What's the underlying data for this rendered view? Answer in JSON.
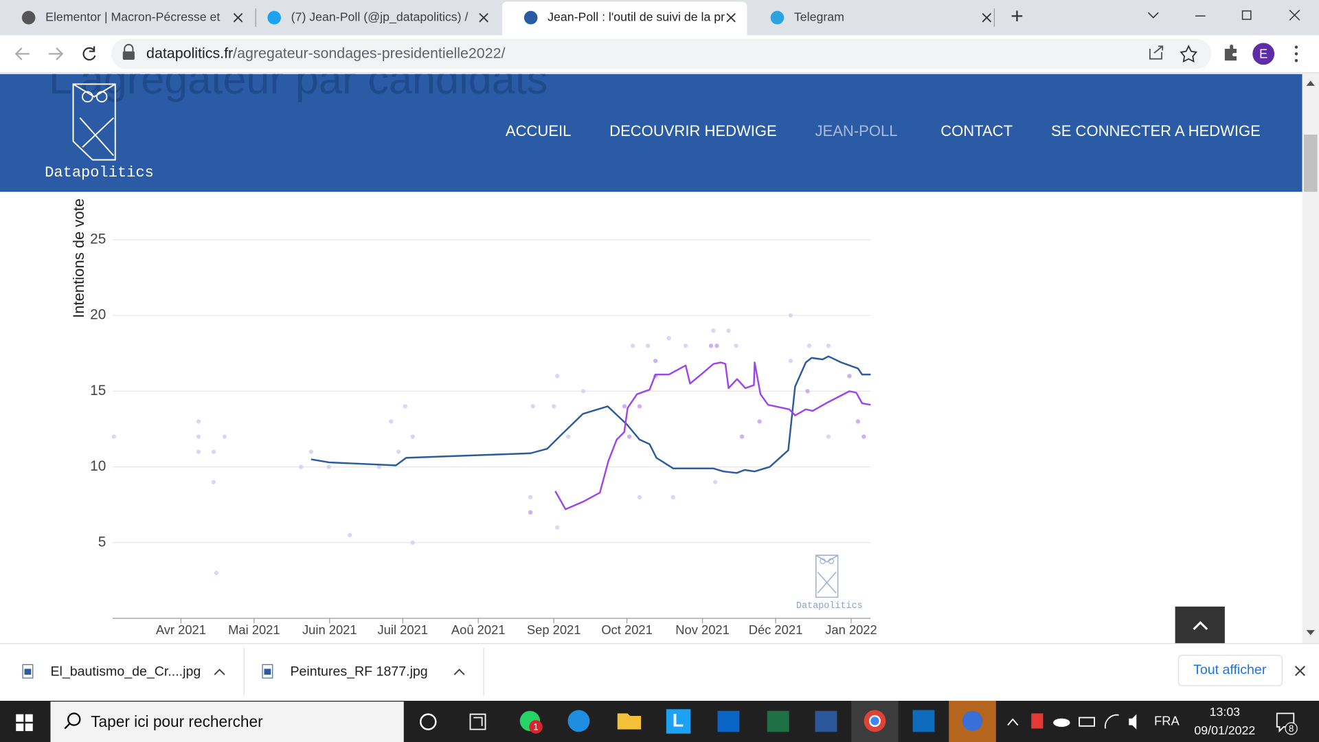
{
  "browser": {
    "tabs": [
      {
        "title": "Elementor | Macron-Pécresse et"
      },
      {
        "title": "(7) Jean-Poll (@jp_datapolitics) /"
      },
      {
        "title": "Jean-Poll : l'outil de suivi de la pr"
      },
      {
        "title": "Telegram"
      }
    ],
    "url_host": "datapolitics.fr",
    "url_path": "/agregateur-sondages-presidentielle2022/",
    "profile": "E"
  },
  "site": {
    "logo": "Datapolitics",
    "nav": [
      "ACCUEIL",
      "DECOUVRIR HEDWIGE",
      "JEAN-POLL",
      "CONTACT",
      "SE CONNECTER A HEDWIGE"
    ],
    "active_nav": 2,
    "heading": "L'agrégateur par candidats"
  },
  "chart": {
    "type": "line",
    "ylabel": "Intentions de vote",
    "watermark": "Datapolitics",
    "xlim": [
      -28,
      283
    ],
    "ylim": [
      0,
      27
    ],
    "xticks": [
      {
        "value": 0,
        "label": "Avr 2021"
      },
      {
        "value": 30,
        "label": "Mai 2021"
      },
      {
        "value": 61,
        "label": "Juin 2021"
      },
      {
        "value": 91,
        "label": "Juil 2021"
      },
      {
        "value": 122,
        "label": "Aoû 2021"
      },
      {
        "value": 153,
        "label": "Sep 2021"
      },
      {
        "value": 183,
        "label": "Oct 2021"
      },
      {
        "value": 214,
        "label": "Nov 2021"
      },
      {
        "value": 244,
        "label": "Déc 2021"
      },
      {
        "value": 275,
        "label": "Jan 2022"
      }
    ],
    "yticks": [
      5,
      10,
      15,
      20,
      25
    ],
    "grid": true,
    "series": [
      {
        "color": "#2b5b9c",
        "x": [
          53.4,
          60.7,
          88.2,
          92.4,
          143.4,
          150.3,
          155.3,
          164.9,
          175.1,
          183,
          188.2,
          192.3,
          195.1,
          202,
          208.9,
          218.5,
          222.6,
          228.1,
          231.3,
          235.4,
          241.6,
          249.2,
          252,
          256.4,
          258.8,
          263.3,
          265.7,
          270.9,
          277.8,
          279.5,
          283
        ],
        "values": [
          10.5,
          10.3,
          10.1,
          10.6,
          10.9,
          11.2,
          12.0,
          13.5,
          14.0,
          12.8,
          11.8,
          11.5,
          10.6,
          9.9,
          9.9,
          9.9,
          9.7,
          9.6,
          9.8,
          9.7,
          10.0,
          11.1,
          15.3,
          16.9,
          17.2,
          17.1,
          17.3,
          16.9,
          16.5,
          16.1,
          16.1
        ]
      },
      {
        "color": "#9b45ec",
        "x": [
          153.6,
          157.8,
          165,
          171.9,
          175.4,
          178.8,
          181.9,
          183.3,
          187.1,
          192.3,
          194.7,
          200.2,
          207.1,
          208.9,
          213.4,
          218.5,
          221.6,
          223.4,
          224.7,
          228.2,
          231.6,
          235.1,
          235.4,
          237.8,
          240.9,
          249.6,
          252,
          256.4,
          259.2,
          264.7,
          274.3,
          277.1,
          279.5,
          283
        ],
        "values": [
          8.4,
          7.2,
          7.7,
          8.3,
          10.4,
          11.8,
          12.3,
          13.9,
          14.8,
          15.1,
          16.1,
          16.1,
          16.7,
          15.5,
          16.1,
          16.8,
          16.9,
          16.8,
          15.2,
          15.8,
          15.2,
          15.4,
          16.9,
          14.8,
          14.1,
          13.8,
          13.4,
          13.8,
          13.7,
          14.2,
          15.0,
          14.9,
          14.2,
          14.1
        ]
      }
    ],
    "scatter": [
      {
        "color": "#cfcdf2",
        "x": [
          -27.5,
          7.2,
          7.2,
          7.2,
          17.9,
          13.4,
          13.4,
          14.5,
          49.3,
          53.4,
          60.7,
          69.3,
          81.3,
          86.2,
          89.3,
          92,
          95.1,
          95.1,
          143.4,
          144.4,
          153,
          154.4,
          154.4,
          158.9,
          165.1,
          185.4,
          191.6,
          200.2,
          207.1,
          218.5,
          224.7,
          227.8,
          250.2,
          257.8,
          265.7,
          250.2,
          265.7,
          201.9,
          188.2,
          219.2
        ],
        "values": [
          12,
          13,
          12,
          11,
          12,
          11,
          9,
          3,
          10,
          11,
          10,
          5.5,
          10,
          13,
          11,
          14,
          12,
          5,
          8,
          14,
          14,
          16,
          6,
          12,
          15,
          18,
          18,
          18.5,
          18,
          19,
          19,
          18,
          20,
          18,
          18,
          17,
          12,
          8,
          8,
          9
        ]
      },
      {
        "color": "#c39cf2",
        "x": [
          143.4,
          182,
          188.2,
          194.7,
          194.7,
          217.5,
          219.9,
          230.2,
          237.4,
          257.1,
          274.3,
          280.2,
          277.8,
          184
        ],
        "values": [
          7,
          14,
          14,
          17,
          16,
          18,
          18,
          12,
          13,
          15,
          16,
          12,
          13,
          12
        ]
      }
    ]
  },
  "downloads": {
    "files": [
      "El_bautismo_de_Cr....jpg",
      "Peintures_RF 1877.jpg"
    ],
    "show_all": "Tout afficher"
  },
  "taskbar": {
    "search": "Taper ici pour rechercher",
    "whatsapp_badge": 1,
    "language": "FRA",
    "time": "13:03",
    "date": "09/01/2022",
    "notifications": 8
  }
}
